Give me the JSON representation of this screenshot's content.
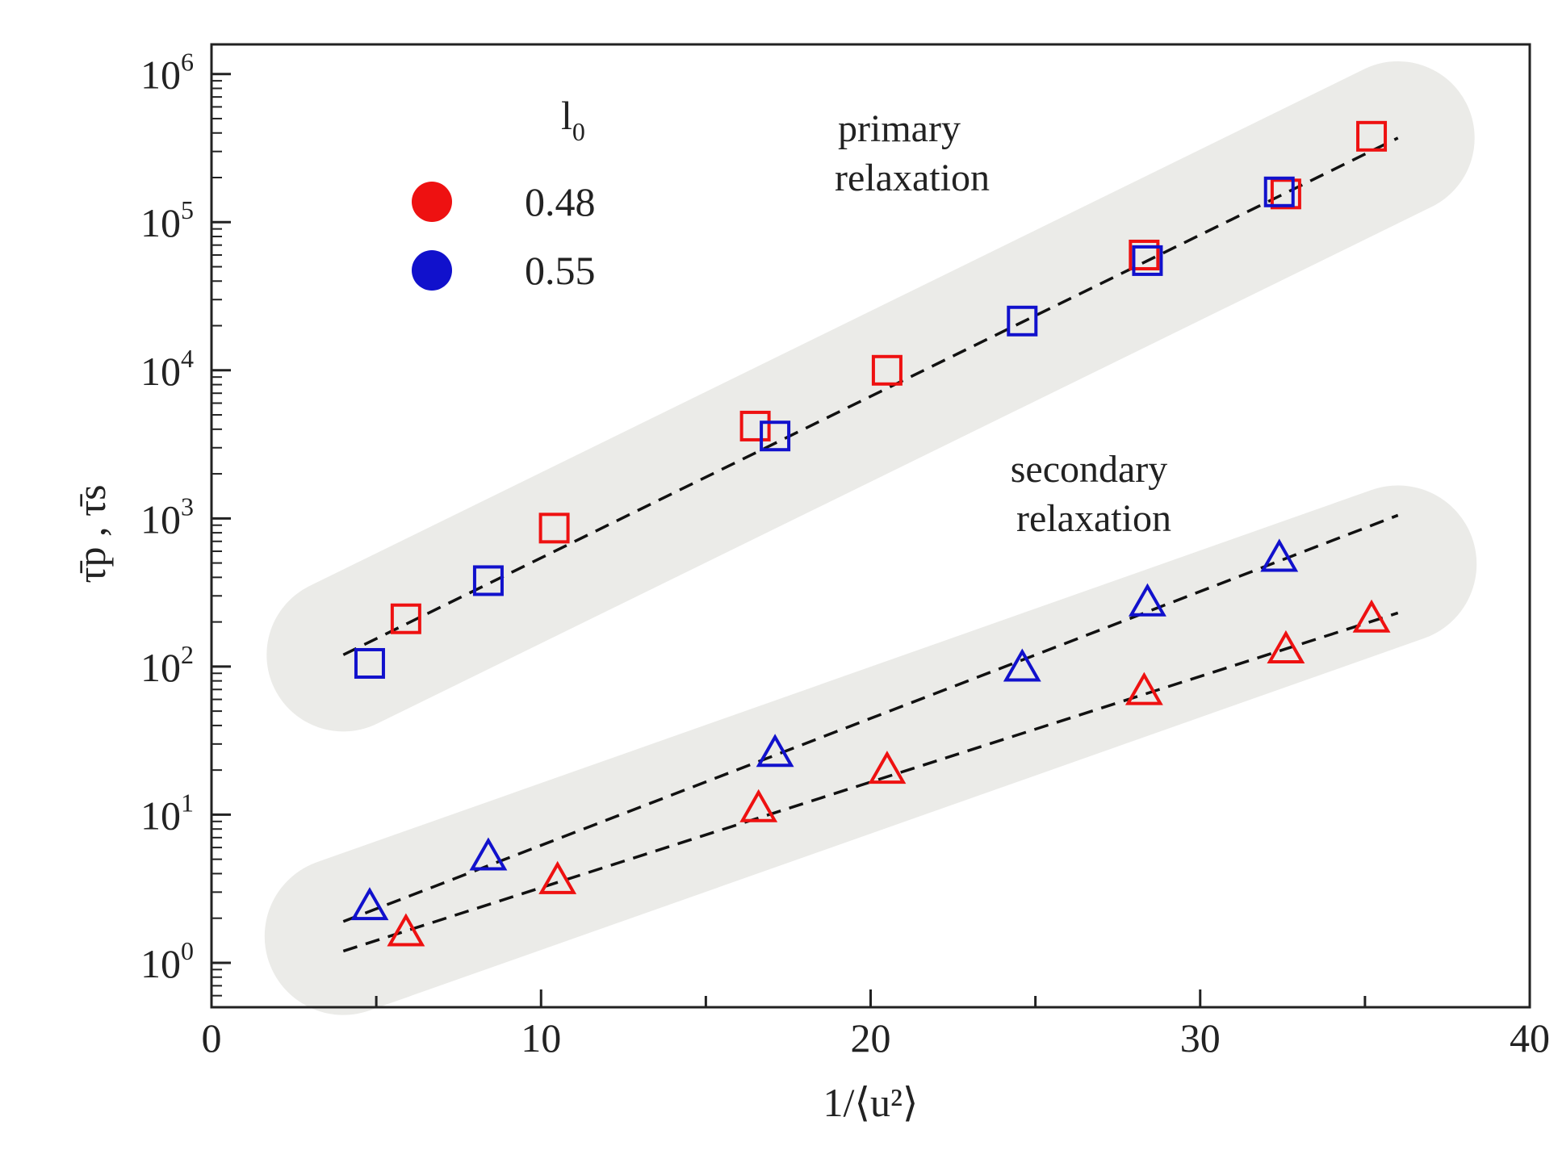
{
  "chart_data": {
    "type": "scatter",
    "xlabel": "1/⟨u²⟩",
    "ylabel": "τ̄p , τ̄s",
    "xlim": [
      0,
      40
    ],
    "ylim_log10": [
      -0.3,
      6.2
    ],
    "y_scale": "log10",
    "x_ticks": [
      0,
      10,
      20,
      30,
      40
    ],
    "y_ticks": [
      {
        "base": "10",
        "exp": "0",
        "value": 1
      },
      {
        "base": "10",
        "exp": "1",
        "value": 10
      },
      {
        "base": "10",
        "exp": "2",
        "value": 100
      },
      {
        "base": "10",
        "exp": "3",
        "value": 1000
      },
      {
        "base": "10",
        "exp": "4",
        "value": 10000
      },
      {
        "base": "10",
        "exp": "5",
        "value": 100000
      },
      {
        "base": "10",
        "exp": "6",
        "value": 1000000
      }
    ],
    "legend": {
      "title_main": "l",
      "title_sub": "0",
      "entries": [
        {
          "label": "0.48",
          "color": "#ee1111"
        },
        {
          "label": "0.55",
          "color": "#1111cc"
        }
      ]
    },
    "annotations": {
      "primary": [
        "primary",
        "relaxation"
      ],
      "secondary": [
        "secondary",
        "relaxation"
      ]
    },
    "series": [
      {
        "name": "primary, l0=0.48",
        "group": "primary",
        "marker": "square",
        "color": "#ee1111",
        "x": [
          5.9,
          10.4,
          16.5,
          20.5,
          28.3,
          32.6,
          35.2
        ],
        "y": [
          210,
          860,
          4200,
          10000,
          60000,
          155000,
          380000
        ]
      },
      {
        "name": "primary, l0=0.55",
        "group": "primary",
        "marker": "square",
        "color": "#1111cc",
        "x": [
          4.8,
          8.4,
          17.1,
          24.6,
          28.4,
          32.4
        ],
        "y": [
          105,
          380,
          3600,
          21500,
          55000,
          160000
        ]
      },
      {
        "name": "secondary, l0=0.48",
        "group": "secondary",
        "marker": "triangle",
        "color": "#ee1111",
        "x": [
          5.9,
          10.5,
          16.6,
          20.5,
          28.3,
          32.6,
          35.2
        ],
        "y": [
          1.6,
          3.6,
          11,
          20,
          68,
          130,
          210
        ]
      },
      {
        "name": "secondary, l0=0.55",
        "group": "secondary",
        "marker": "triangle",
        "color": "#1111cc",
        "x": [
          4.8,
          8.4,
          17.1,
          24.6,
          28.4,
          32.4
        ],
        "y": [
          2.4,
          5.2,
          26,
          98,
          270,
          540
        ]
      }
    ],
    "fit_lines": [
      {
        "name": "primary fit",
        "x": [
          4.0,
          36.0
        ],
        "y": [
          120,
          370000
        ]
      },
      {
        "name": "secondary fit 0.55",
        "x": [
          4.0,
          36.0
        ],
        "y": [
          1.9,
          1050
        ]
      },
      {
        "name": "secondary fit 0.48",
        "x": [
          4.0,
          36.0
        ],
        "y": [
          1.2,
          230
        ]
      }
    ]
  },
  "colors": {
    "band": "#ebebe8",
    "axis": "#222222",
    "fit": "#111111"
  }
}
